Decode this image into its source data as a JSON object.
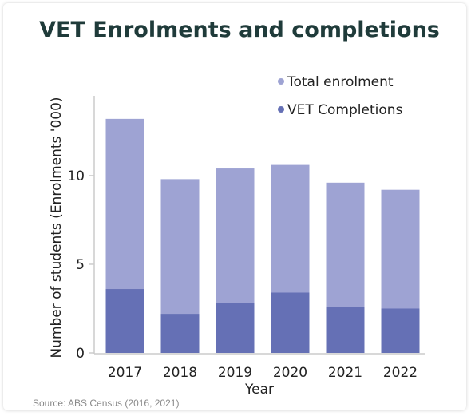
{
  "chart_data": {
    "type": "bar",
    "stacked": true,
    "title": "VET Enrolments and completions",
    "xlabel": "Year",
    "ylabel": "Number of students (Enrolments '000)",
    "categories": [
      "2017",
      "2018",
      "2019",
      "2020",
      "2021",
      "2022"
    ],
    "series": [
      {
        "name": "VET Completions",
        "color": "#6570b5",
        "values": [
          3.6,
          2.2,
          2.8,
          3.4,
          2.6,
          2.5
        ]
      },
      {
        "name": "Total enrolment",
        "color": "#9ea3d3",
        "values": [
          13.2,
          9.8,
          10.4,
          10.6,
          9.6,
          9.2
        ]
      }
    ],
    "legend_order": [
      "Total enrolment",
      "VET Completions"
    ],
    "yticks": [
      0,
      5,
      10
    ],
    "ylim": [
      0,
      14.5
    ],
    "legend_position": "top-right",
    "grid": false
  },
  "source": "Source: ABS Census (2016, 2021)"
}
